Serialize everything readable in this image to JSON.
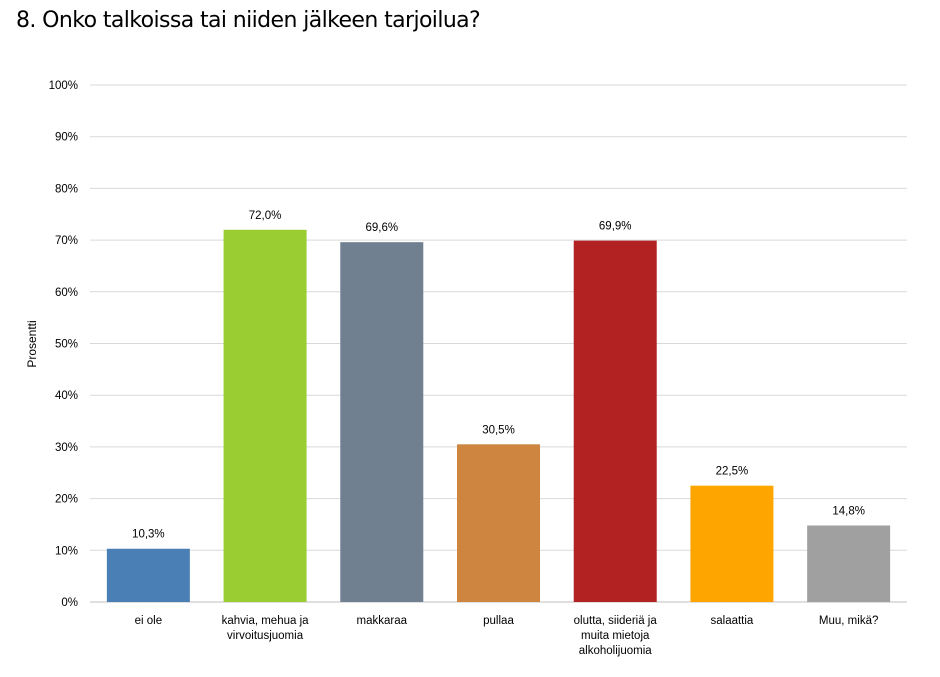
{
  "page": {
    "title": "8. Onko talkoissa tai niiden jälkeen tarjoilua?"
  },
  "chart_data": {
    "type": "bar",
    "title": "8. Onko talkoissa tai niiden jälkeen tarjoilua?",
    "xlabel": "",
    "ylabel": "Prosentti",
    "ylim": [
      0,
      100
    ],
    "y_ticks": [
      "0%",
      "10%",
      "20%",
      "30%",
      "40%",
      "50%",
      "60%",
      "70%",
      "80%",
      "90%",
      "100%"
    ],
    "grid": true,
    "legend": "none",
    "categories": [
      [
        "ei ole"
      ],
      [
        "kahvia, mehua ja",
        "virvoitusjuomia"
      ],
      [
        "makkaraa"
      ],
      [
        "pullaa"
      ],
      [
        "olutta, siideriä ja",
        "muita mietoja",
        "alkoholijuomia"
      ],
      [
        "salaattia"
      ],
      [
        "Muu, mikä?"
      ]
    ],
    "values": [
      10.3,
      72.0,
      69.6,
      30.5,
      69.9,
      22.5,
      14.8
    ],
    "value_labels": [
      "10,3%",
      "72,0%",
      "69,6%",
      "30,5%",
      "69,9%",
      "22,5%",
      "14,8%"
    ],
    "colors": [
      "#4a7fb5",
      "#9acd32",
      "#708090",
      "#cd853f",
      "#b22222",
      "#ffa500",
      "#a0a0a0"
    ]
  }
}
